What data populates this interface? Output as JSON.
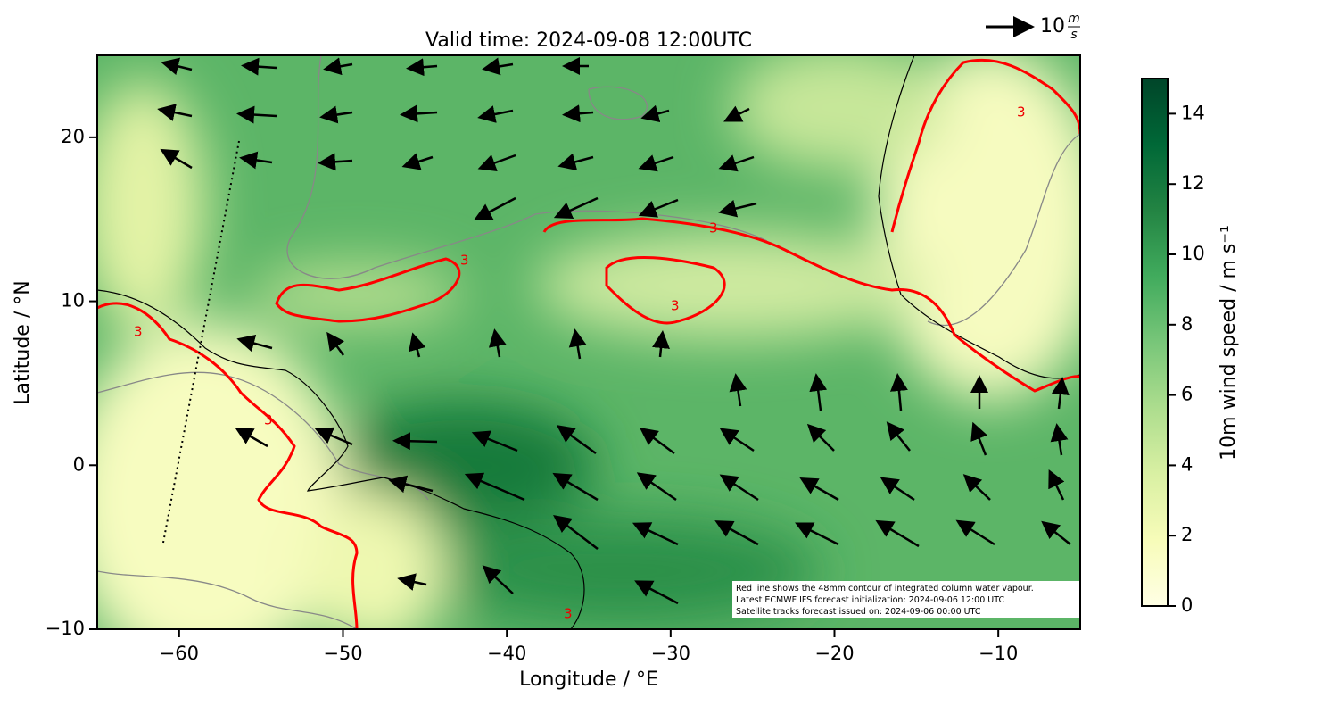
{
  "chart_data": {
    "type": "map",
    "title": "Valid time: 2024-09-08 12:00UTC",
    "xlabel": "Longitude / °E",
    "ylabel": "Latitude / °N",
    "xlim": [
      -65,
      -5
    ],
    "ylim": [
      -10,
      25
    ],
    "xticks": [
      {
        "value": -60,
        "label": "−60"
      },
      {
        "value": -50,
        "label": "−50"
      },
      {
        "value": -40,
        "label": "−40"
      },
      {
        "value": -30,
        "label": "−30"
      },
      {
        "value": -20,
        "label": "−20"
      },
      {
        "value": -10,
        "label": "−10"
      }
    ],
    "yticks": [
      {
        "value": -10,
        "label": "−10"
      },
      0,
      10,
      20
    ],
    "colorbar": {
      "label": "10m wind speed / m s⁻¹",
      "lim": [
        0,
        15
      ],
      "ticks": [
        0,
        2,
        4,
        6,
        8,
        10,
        12,
        14
      ],
      "colors": [
        "#ffffe5",
        "#f7fcb9",
        "#d9f0a3",
        "#addd8e",
        "#78c679",
        "#41ab5d",
        "#238443",
        "#006837",
        "#004529"
      ]
    },
    "quiver_key": {
      "value": 10,
      "unit_numerator": "m",
      "unit_denominator": "s"
    },
    "contour_label": "3",
    "notes": [
      "Red line shows the 48mm contour of integrated column water vapour.",
      "Latest ECMWF IFS forecast initialization: 2024-09-06 12:00 UTC",
      "Satellite tracks forecast issued on: 2024-09-06 00:00 UTC"
    ]
  }
}
